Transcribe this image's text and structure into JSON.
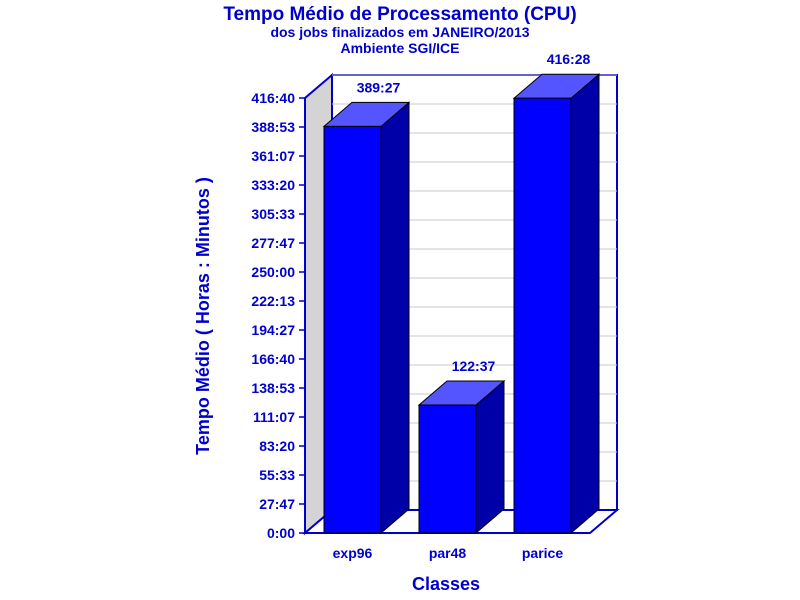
{
  "chart_data": {
    "type": "bar",
    "title": "Tempo Médio de Processamento (CPU)",
    "subtitle_lines": [
      "dos jobs finalizados em JANEIRO/2013",
      "Ambiente SGI/ICE"
    ],
    "xlabel": "Classes",
    "ylabel": "Tempo Médio ( Horas : Minutos )",
    "categories": [
      "exp96",
      "par48",
      "parice"
    ],
    "values": [
      23367,
      7357,
      24988
    ],
    "value_labels": [
      "389:27",
      "122:37",
      "416:28"
    ],
    "ylim": [
      0,
      25000
    ],
    "yticks": [
      0,
      1667,
      3333,
      5000,
      6667,
      8333,
      10000,
      11667,
      13333,
      15000,
      16667,
      18333,
      20000,
      21667,
      23333,
      25000
    ],
    "ytick_labels": [
      "0:00",
      "27:47",
      "55:33",
      "83:20",
      "111:07",
      "138:53",
      "166:40",
      "194:27",
      "222:13",
      "250:00",
      "277:47",
      "305:33",
      "333:20",
      "361:07",
      "388:53",
      "416:40"
    ],
    "grid": true,
    "legend": "none",
    "colors": {
      "bar_front": "#0000ff",
      "bar_top": "#5555ff",
      "bar_side": "#0000a8",
      "frame": "#0000cc",
      "back_wall": "#ffffff",
      "side_wall": "#d4d4d4",
      "grid": "#c8c8c8",
      "text": "#0000cc"
    }
  }
}
